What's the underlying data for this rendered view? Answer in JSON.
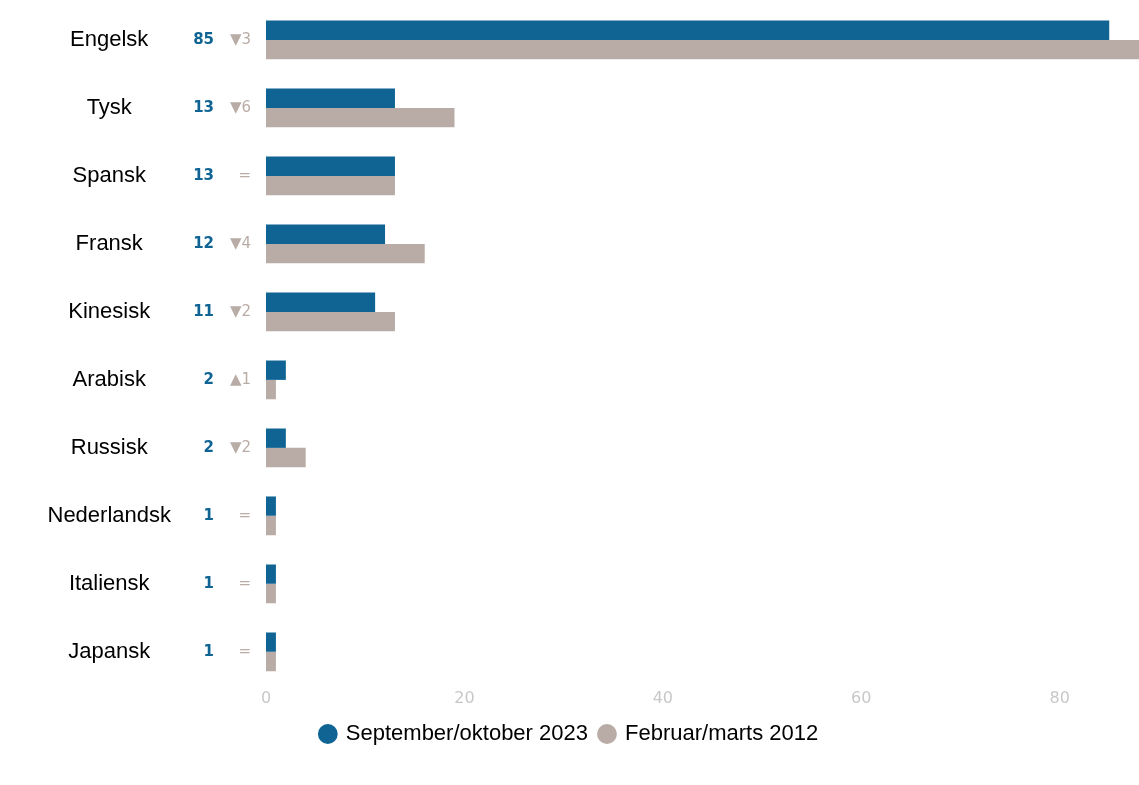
{
  "chart_data": {
    "type": "bar",
    "orientation": "horizontal",
    "categories": [
      "Engelsk",
      "Tysk",
      "Spansk",
      "Fransk",
      "Kinesisk",
      "Arabisk",
      "Russisk",
      "Nederlandsk",
      "Italiensk",
      "Japansk"
    ],
    "series": [
      {
        "name": "September/oktober 2023",
        "color": "#0f6494",
        "values": [
          85,
          13,
          13,
          12,
          11,
          2,
          2,
          1,
          1,
          1
        ],
        "value_labels": [
          "85",
          "13",
          "13",
          "12",
          "11",
          "2",
          "2",
          "1",
          "1",
          "1"
        ]
      },
      {
        "name": "Februar/marts 2012",
        "color": "#b9aca6",
        "values": [
          88,
          19,
          13,
          16,
          13,
          1,
          4,
          1,
          1,
          1
        ]
      }
    ],
    "annotations": [
      "▼3",
      "▼6",
      "=",
      "▼4",
      "▼2",
      "▲1",
      "▼2",
      "=",
      "=",
      "="
    ],
    "xlim": [
      0,
      88
    ],
    "xticks": [
      0,
      20,
      40,
      60,
      80
    ],
    "legend": "bottom"
  }
}
